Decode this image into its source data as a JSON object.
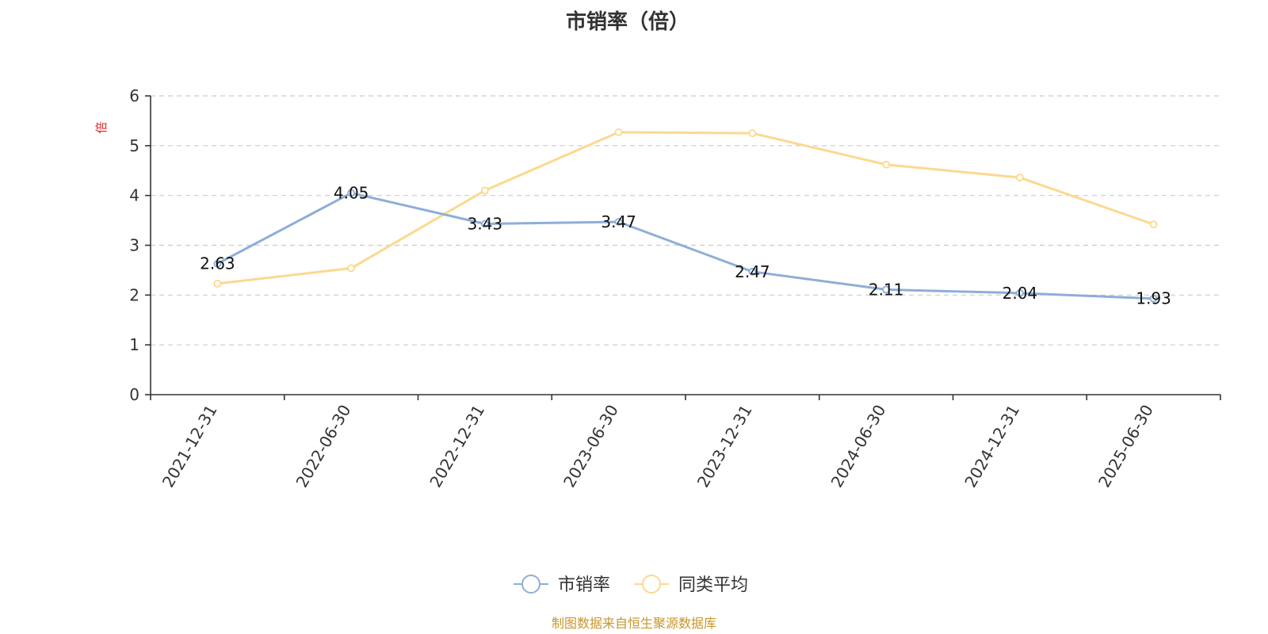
{
  "chart_data": {
    "type": "line",
    "title": "市销率（倍）",
    "y_unit": "倍",
    "categories": [
      "2021-12-31",
      "2022-06-30",
      "2022-12-31",
      "2023-06-30",
      "2023-12-31",
      "2024-06-30",
      "2024-12-31",
      "2025-06-30"
    ],
    "ylim": [
      0,
      6
    ],
    "yticks": [
      0,
      1,
      2,
      3,
      4,
      5,
      6
    ],
    "grid": true,
    "legend_position": "bottom",
    "series": [
      {
        "name": "市销率",
        "color": "#8eaed8",
        "values": [
          2.63,
          4.05,
          3.43,
          3.47,
          2.47,
          2.11,
          2.04,
          1.93
        ],
        "labels": [
          "2.63",
          "4.05",
          "3.43",
          "3.47",
          "2.47",
          "2.11",
          "2.04",
          "1.93"
        ]
      },
      {
        "name": "同类平均",
        "color": "#fbd98f",
        "values": [
          2.23,
          2.54,
          4.1,
          5.27,
          5.25,
          4.62,
          4.36,
          3.42
        ]
      }
    ],
    "y_unit_color": "#e02020",
    "source_color": "#c8962a"
  },
  "footer": {
    "source": "制图数据来自恒生聚源数据库"
  }
}
